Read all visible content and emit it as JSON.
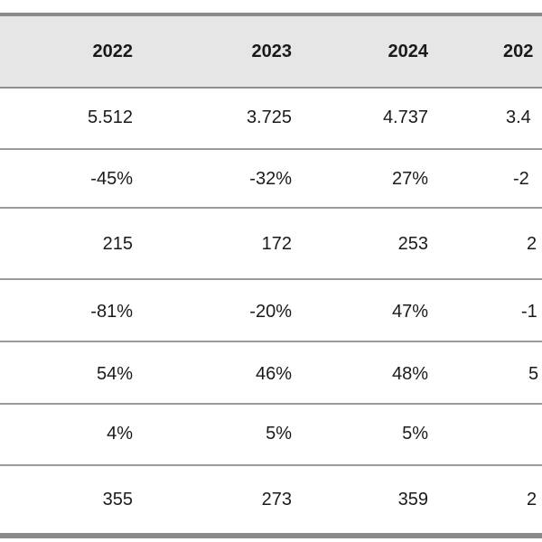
{
  "table": {
    "headers": [
      "2022",
      "2023",
      "2024",
      "202"
    ],
    "rows": [
      [
        "5.512",
        "3.725",
        "4.737",
        "3.4"
      ],
      [
        "-45%",
        "-32%",
        "27%",
        "-2"
      ],
      [
        "215",
        "172",
        "253",
        "2"
      ],
      [
        "-81%",
        "-20%",
        "47%",
        "-1"
      ],
      [
        "54%",
        "46%",
        "48%",
        "5"
      ],
      [
        "4%",
        "5%",
        "5%",
        ""
      ],
      [
        "355",
        "273",
        "359",
        "2"
      ]
    ]
  }
}
